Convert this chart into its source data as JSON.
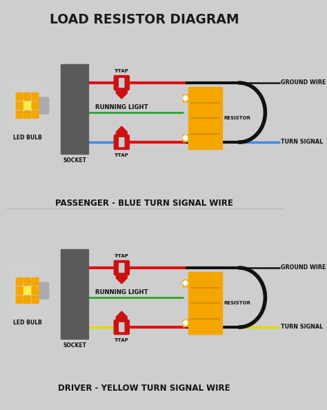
{
  "title": "LOAD RESISTOR DIAGRAM",
  "bg_color": "#cecece",
  "title_color": "#1a1a1a",
  "top_label": "PASSENGER - BLUE TURN SIGNAL WIRE",
  "bottom_label": "DRIVER - YELLOW TURN SIGNAL WIRE",
  "top_turn_wire_color": "#4488dd",
  "bottom_turn_wire_color": "#dddd00",
  "red_wire_color": "#dd1111",
  "black_wire_color": "#111111",
  "green_wire_color": "#22aa22",
  "resistor_color": "#f5a500",
  "resistor_dark": "#cc8800",
  "socket_color": "#5a5a5a",
  "ttap_body_color": "#cc1111",
  "ttap_metal_color": "#cccccc",
  "text_color": "#111111",
  "label_color": "#111111",
  "bulb_body_color": "#d0d0d0",
  "bulb_led_orange": "#f5a500",
  "bulb_led_yellow": "#ffee44",
  "wire_lw": 3.0,
  "thin_wire_lw": 2.5
}
